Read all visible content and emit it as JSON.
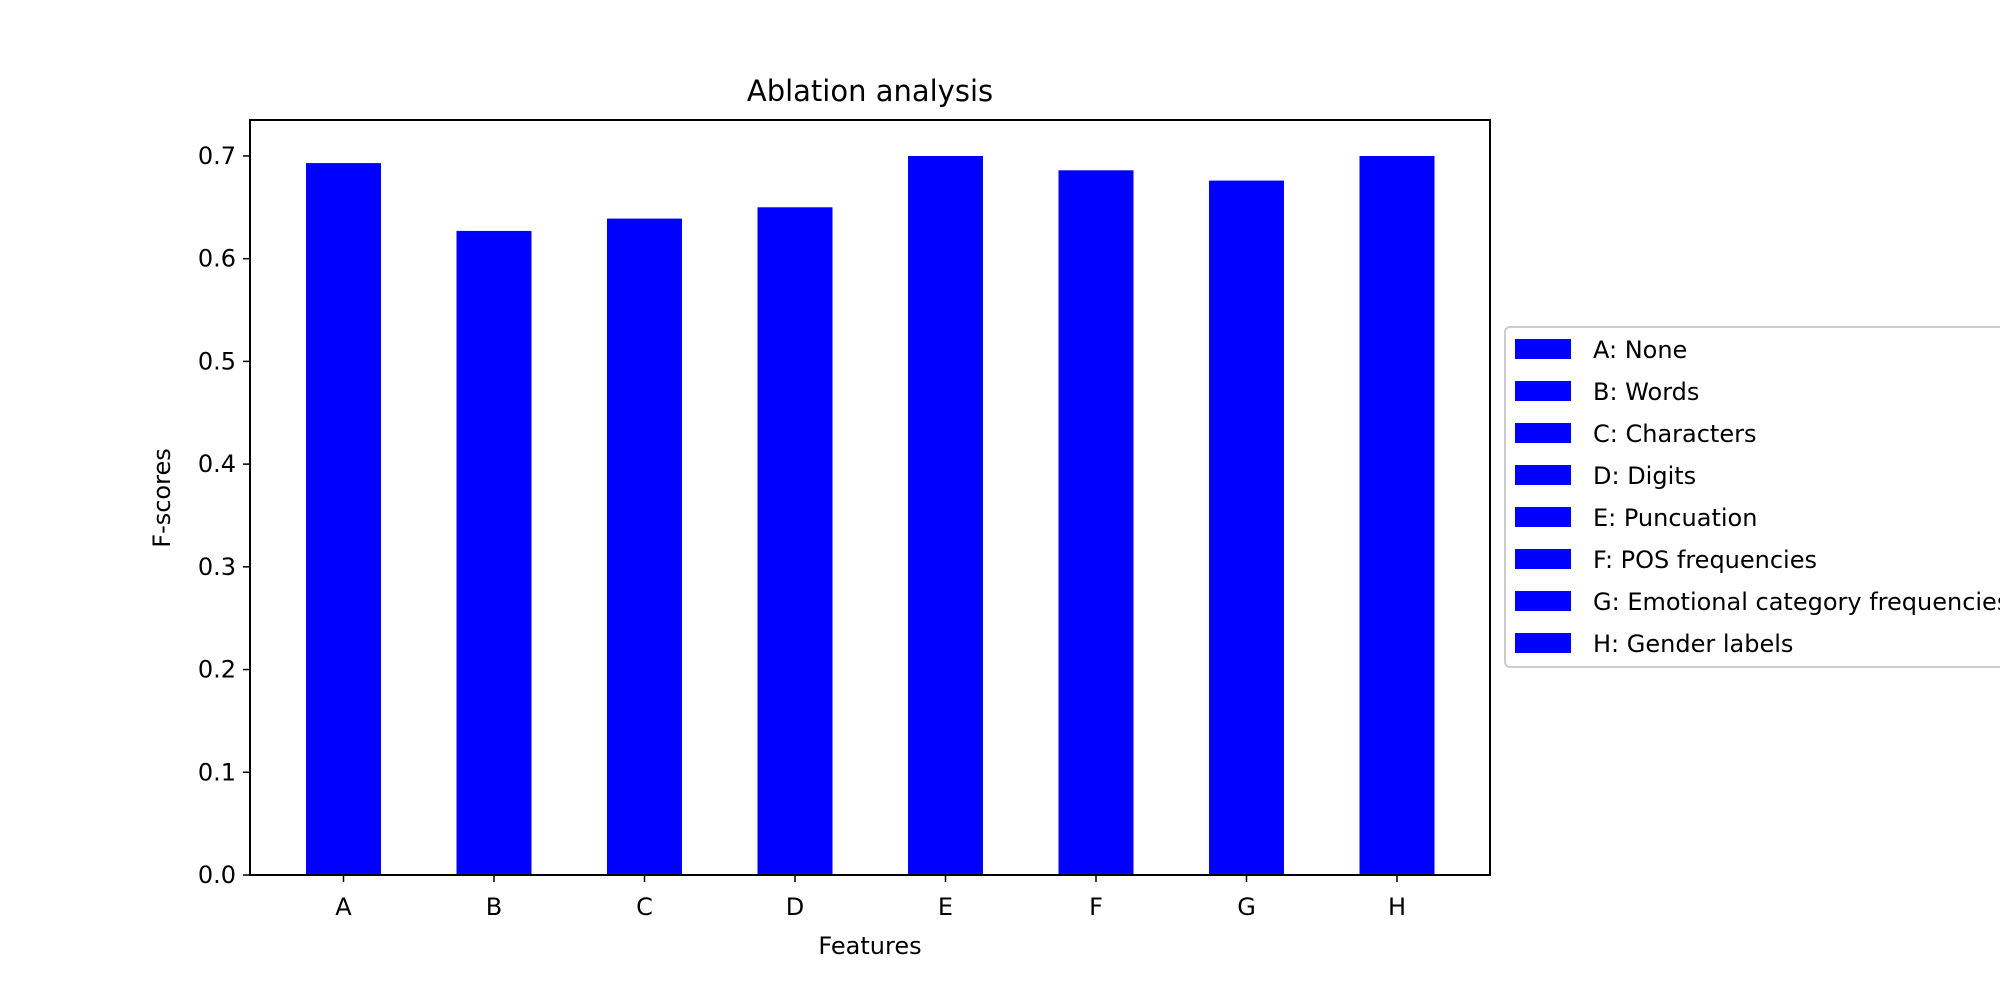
{
  "chart_data": {
    "type": "bar",
    "title": "Ablation analysis",
    "xlabel": "Features",
    "ylabel": "F-scores",
    "categories": [
      "A",
      "B",
      "C",
      "D",
      "E",
      "F",
      "G",
      "H"
    ],
    "values": [
      0.693,
      0.627,
      0.639,
      0.65,
      0.7,
      0.686,
      0.676,
      0.7
    ],
    "ylim": [
      0,
      0.735
    ],
    "yticks": [
      "0.0",
      "0.1",
      "0.2",
      "0.3",
      "0.4",
      "0.5",
      "0.6",
      "0.7"
    ],
    "bar_color": "#0000ff",
    "grid": false,
    "legend_position": "right, outside plot",
    "legend": [
      "A: None",
      "B: Words",
      "C: Characters",
      "D: Digits",
      "E: Puncuation",
      "F: POS frequencies",
      "G: Emotional category frequencies",
      "H: Gender labels"
    ]
  }
}
